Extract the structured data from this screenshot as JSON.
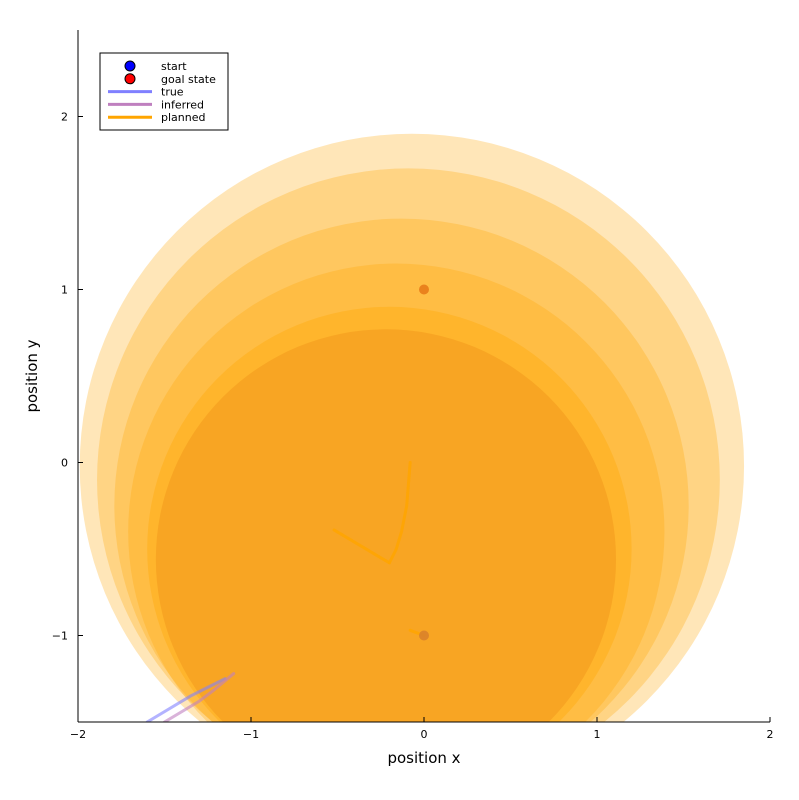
{
  "chart_data": {
    "type": "scatter",
    "xlabel": "position x",
    "ylabel": "position y",
    "xlim": [
      -2,
      2
    ],
    "ylim": [
      -1.5,
      2.5
    ],
    "xticks": [
      -2,
      -1,
      0,
      1,
      2
    ],
    "yticks": [
      -1,
      0,
      1,
      2
    ],
    "grid": false,
    "legend_position": "top-left",
    "legend": [
      {
        "label": "start",
        "kind": "marker",
        "color": "#0000ff"
      },
      {
        "label": "goal state",
        "kind": "marker",
        "color": "#ff0000"
      },
      {
        "label": "true",
        "kind": "line",
        "color": "#8080ff"
      },
      {
        "label": "inferred",
        "kind": "line",
        "color": "#bf80bf"
      },
      {
        "label": "planned",
        "kind": "line",
        "color": "#ffa500"
      }
    ],
    "uncertainty_circles": [
      {
        "cx": -0.07,
        "cy": -0.02,
        "r": 1.92,
        "color": "#ffa500",
        "opacity": 0.28
      },
      {
        "cx": -0.09,
        "cy": -0.1,
        "r": 1.8,
        "color": "#ffa500",
        "opacity": 0.28
      },
      {
        "cx": -0.13,
        "cy": -0.25,
        "r": 1.66,
        "color": "#ffa500",
        "opacity": 0.28
      },
      {
        "cx": -0.16,
        "cy": -0.4,
        "r": 1.55,
        "color": "#ffa500",
        "opacity": 0.28
      },
      {
        "cx": -0.2,
        "cy": -0.5,
        "r": 1.4,
        "color": "#ffa500",
        "opacity": 0.35
      },
      {
        "cx": -0.22,
        "cy": -0.56,
        "r": 1.33,
        "color": "#f5a020",
        "opacity": 0.75
      }
    ],
    "series": [
      {
        "name": "true",
        "color": "#8080ff",
        "x": [
          -1.6,
          -1.35,
          -1.25,
          -1.15
        ],
        "y": [
          -1.5,
          -1.35,
          -1.3,
          -1.25
        ]
      },
      {
        "name": "inferred",
        "color": "#bf80bf",
        "x": [
          -1.5,
          -1.3,
          -1.22,
          -1.1
        ],
        "y": [
          -1.5,
          -1.38,
          -1.32,
          -1.22
        ]
      },
      {
        "name": "planned",
        "color": "#ffa500",
        "segments": [
          {
            "x": [
              -0.52,
              -0.2
            ],
            "y": [
              -0.39,
              -0.58
            ]
          },
          {
            "x": [
              -0.2,
              -0.16,
              -0.13,
              -0.1,
              -0.08
            ],
            "y": [
              -0.58,
              -0.5,
              -0.4,
              -0.25,
              0.0
            ]
          },
          {
            "x": [
              -0.08,
              0.0
            ],
            "y": [
              -0.97,
              -1.0
            ]
          }
        ]
      }
    ],
    "points": [
      {
        "name": "goal state",
        "x": 0.0,
        "y": 1.0,
        "color": "#e87b1a"
      },
      {
        "name": "start",
        "x": 0.0,
        "y": -1.0,
        "color": "#d9822b"
      }
    ]
  }
}
